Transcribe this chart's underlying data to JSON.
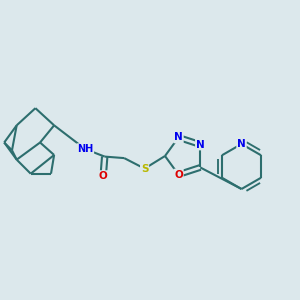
{
  "background_color": "#dce8ec",
  "bond_color": "#2d6e6e",
  "atom_colors": {
    "N": "#0000ee",
    "O": "#dd0000",
    "S": "#b8b800",
    "C": "#000000"
  },
  "figsize": [
    3.0,
    3.0
  ],
  "dpi": 100
}
